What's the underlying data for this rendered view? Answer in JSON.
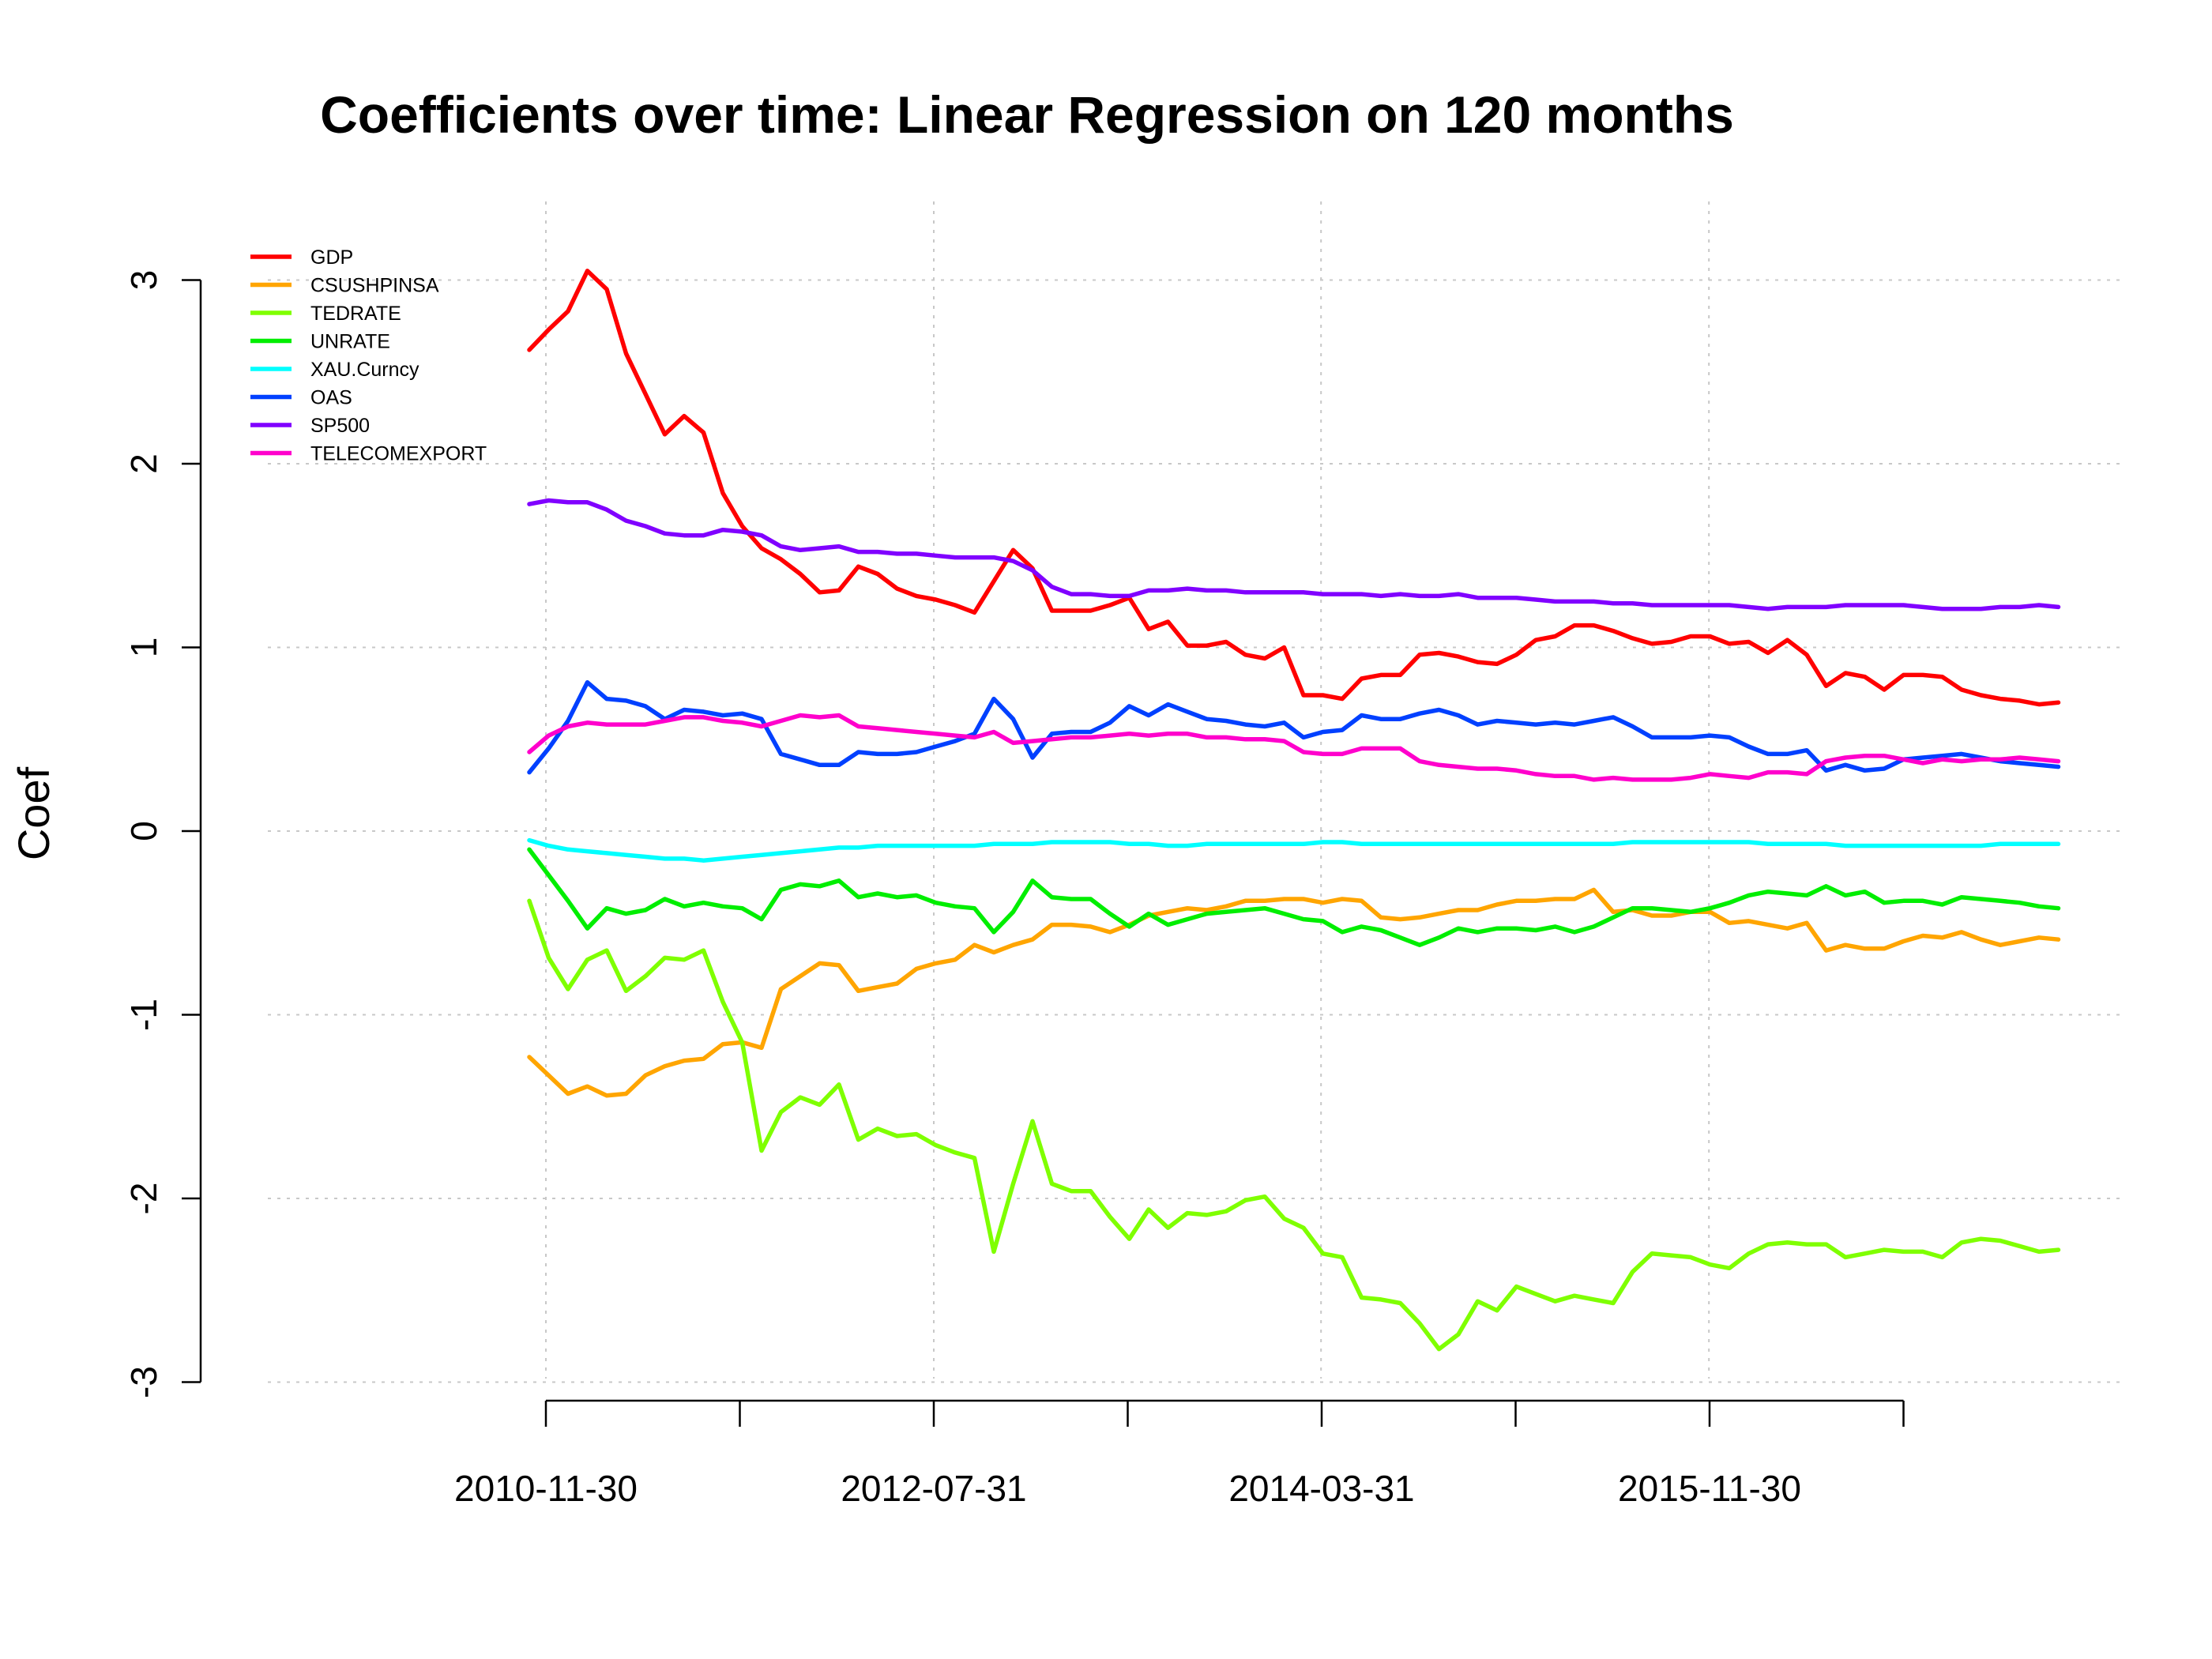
{
  "chart_data": {
    "type": "line",
    "title": "Coefficients over time: Linear Regression on 120 months",
    "xlabel": "",
    "ylabel": "Coef",
    "ylim": [
      -3,
      3
    ],
    "yticks": [
      3,
      2,
      1,
      0,
      -1,
      -2,
      -3
    ],
    "x_start": "2010-07-31",
    "x_step": "1 month",
    "x_range": [
      "2010-07-31",
      "2018-12-31"
    ],
    "x_tick_labels": [
      "2010-11-30",
      "2012-07-31",
      "2014-03-31",
      "2015-11-30"
    ],
    "grid": true,
    "legend_position": "top-left",
    "series": [
      {
        "name": "GDP",
        "color": "#FF0000",
        "values": [
          2.62,
          2.73,
          2.83,
          3.05,
          2.95,
          2.6,
          2.38,
          2.16,
          2.26,
          2.17,
          1.84,
          1.66,
          1.54,
          1.48,
          1.4,
          1.3,
          1.31,
          1.44,
          1.4,
          1.32,
          1.28,
          1.26,
          1.23,
          1.19,
          1.36,
          1.53,
          1.43,
          1.2,
          1.2,
          1.2,
          1.23,
          1.27,
          1.1,
          1.14,
          1.01,
          1.01,
          1.03,
          0.96,
          0.94,
          1.0,
          0.74,
          0.74,
          0.72,
          0.83,
          0.85,
          0.85,
          0.96,
          0.97,
          0.95,
          0.92,
          0.91,
          0.96,
          1.04,
          1.06,
          1.12,
          1.12,
          1.09,
          1.05,
          1.02,
          1.03,
          1.06,
          1.06,
          1.02,
          1.03,
          0.97,
          1.04,
          0.96,
          0.79,
          0.86,
          0.84,
          0.77,
          0.85,
          0.85,
          0.84,
          0.77,
          0.74,
          0.72,
          0.71,
          0.69,
          0.7
        ]
      },
      {
        "name": "CSUSHPINSA",
        "color": "#FFA500",
        "values": [
          -1.23,
          -1.33,
          -1.43,
          -1.39,
          -1.44,
          -1.43,
          -1.33,
          -1.28,
          -1.25,
          -1.24,
          -1.16,
          -1.15,
          -1.18,
          -0.86,
          -0.79,
          -0.72,
          -0.73,
          -0.87,
          -0.85,
          -0.83,
          -0.75,
          -0.72,
          -0.7,
          -0.62,
          -0.66,
          -0.62,
          -0.59,
          -0.51,
          -0.51,
          -0.52,
          -0.55,
          -0.51,
          -0.46,
          -0.44,
          -0.42,
          -0.43,
          -0.41,
          -0.38,
          -0.38,
          -0.37,
          -0.37,
          -0.39,
          -0.37,
          -0.38,
          -0.47,
          -0.48,
          -0.47,
          -0.45,
          -0.43,
          -0.43,
          -0.4,
          -0.38,
          -0.38,
          -0.37,
          -0.37,
          -0.32,
          -0.44,
          -0.43,
          -0.46,
          -0.46,
          -0.44,
          -0.44,
          -0.5,
          -0.49,
          -0.51,
          -0.53,
          -0.5,
          -0.65,
          -0.62,
          -0.64,
          -0.64,
          -0.6,
          -0.57,
          -0.58,
          -0.55,
          -0.59,
          -0.62,
          -0.6,
          -0.58,
          -0.59
        ]
      },
      {
        "name": "TEDRATE",
        "color": "#7FFF00",
        "values": [
          -0.38,
          -0.69,
          -0.86,
          -0.7,
          -0.65,
          -0.87,
          -0.79,
          -0.69,
          -0.7,
          -0.65,
          -0.93,
          -1.15,
          -1.74,
          -1.53,
          -1.45,
          -1.49,
          -1.38,
          -1.68,
          -1.62,
          -1.66,
          -1.65,
          -1.71,
          -1.75,
          -1.78,
          -2.29,
          -1.92,
          -1.58,
          -1.92,
          -1.96,
          -1.96,
          -2.1,
          -2.22,
          -2.06,
          -2.16,
          -2.08,
          -2.09,
          -2.07,
          -2.01,
          -1.99,
          -2.11,
          -2.16,
          -2.3,
          -2.32,
          -2.54,
          -2.55,
          -2.57,
          -2.68,
          -2.82,
          -2.74,
          -2.56,
          -2.61,
          -2.48,
          -2.52,
          -2.56,
          -2.53,
          -2.55,
          -2.57,
          -2.4,
          -2.3,
          -2.31,
          -2.32,
          -2.36,
          -2.38,
          -2.3,
          -2.25,
          -2.24,
          -2.25,
          -2.25,
          -2.32,
          -2.3,
          -2.28,
          -2.29,
          -2.29,
          -2.32,
          -2.24,
          -2.22,
          -2.23,
          -2.26,
          -2.29,
          -2.28
        ]
      },
      {
        "name": "UNRATE",
        "color": "#00EE00",
        "values": [
          -0.1,
          -0.24,
          -0.38,
          -0.53,
          -0.42,
          -0.45,
          -0.43,
          -0.37,
          -0.41,
          -0.39,
          -0.41,
          -0.42,
          -0.48,
          -0.32,
          -0.29,
          -0.3,
          -0.27,
          -0.36,
          -0.34,
          -0.36,
          -0.35,
          -0.39,
          -0.41,
          -0.42,
          -0.55,
          -0.44,
          -0.27,
          -0.36,
          -0.37,
          -0.37,
          -0.45,
          -0.52,
          -0.45,
          -0.51,
          -0.48,
          -0.45,
          -0.44,
          -0.43,
          -0.42,
          -0.45,
          -0.48,
          -0.49,
          -0.55,
          -0.52,
          -0.54,
          -0.58,
          -0.62,
          -0.58,
          -0.53,
          -0.55,
          -0.53,
          -0.53,
          -0.54,
          -0.52,
          -0.55,
          -0.52,
          -0.47,
          -0.42,
          -0.42,
          -0.43,
          -0.44,
          -0.42,
          -0.39,
          -0.35,
          -0.33,
          -0.34,
          -0.35,
          -0.3,
          -0.35,
          -0.33,
          -0.39,
          -0.38,
          -0.38,
          -0.4,
          -0.36,
          -0.37,
          -0.38,
          -0.39,
          -0.41,
          -0.42
        ]
      },
      {
        "name": "XAU.Curncy",
        "color": "#00FFFF",
        "values": [
          -0.05,
          -0.08,
          -0.1,
          -0.11,
          -0.12,
          -0.13,
          -0.14,
          -0.15,
          -0.15,
          -0.16,
          -0.15,
          -0.14,
          -0.13,
          -0.12,
          -0.11,
          -0.1,
          -0.09,
          -0.09,
          -0.08,
          -0.08,
          -0.08,
          -0.08,
          -0.08,
          -0.08,
          -0.07,
          -0.07,
          -0.07,
          -0.06,
          -0.06,
          -0.06,
          -0.06,
          -0.07,
          -0.07,
          -0.08,
          -0.08,
          -0.07,
          -0.07,
          -0.07,
          -0.07,
          -0.07,
          -0.07,
          -0.06,
          -0.06,
          -0.07,
          -0.07,
          -0.07,
          -0.07,
          -0.07,
          -0.07,
          -0.07,
          -0.07,
          -0.07,
          -0.07,
          -0.07,
          -0.07,
          -0.07,
          -0.07,
          -0.06,
          -0.06,
          -0.06,
          -0.06,
          -0.06,
          -0.06,
          -0.06,
          -0.07,
          -0.07,
          -0.07,
          -0.07,
          -0.08,
          -0.08,
          -0.08,
          -0.08,
          -0.08,
          -0.08,
          -0.08,
          -0.08,
          -0.07,
          -0.07,
          -0.07,
          -0.07
        ]
      },
      {
        "name": "OAS",
        "color": "#0040FF",
        "values": [
          0.32,
          0.45,
          0.6,
          0.81,
          0.72,
          0.71,
          0.68,
          0.61,
          0.66,
          0.65,
          0.63,
          0.64,
          0.61,
          0.42,
          0.39,
          0.36,
          0.36,
          0.43,
          0.42,
          0.42,
          0.43,
          0.46,
          0.49,
          0.53,
          0.72,
          0.61,
          0.4,
          0.53,
          0.54,
          0.54,
          0.59,
          0.68,
          0.63,
          0.69,
          0.65,
          0.61,
          0.6,
          0.58,
          0.57,
          0.59,
          0.51,
          0.54,
          0.55,
          0.63,
          0.61,
          0.61,
          0.64,
          0.66,
          0.63,
          0.58,
          0.6,
          0.59,
          0.58,
          0.59,
          0.58,
          0.6,
          0.62,
          0.57,
          0.51,
          0.51,
          0.51,
          0.52,
          0.51,
          0.46,
          0.42,
          0.42,
          0.44,
          0.33,
          0.36,
          0.33,
          0.34,
          0.39,
          0.4,
          0.41,
          0.42,
          0.4,
          0.38,
          0.37,
          0.36,
          0.35
        ]
      },
      {
        "name": "SP500",
        "color": "#8000FF",
        "values": [
          1.78,
          1.8,
          1.79,
          1.79,
          1.75,
          1.69,
          1.66,
          1.62,
          1.61,
          1.61,
          1.64,
          1.63,
          1.61,
          1.55,
          1.53,
          1.54,
          1.55,
          1.52,
          1.52,
          1.51,
          1.51,
          1.5,
          1.49,
          1.49,
          1.49,
          1.47,
          1.42,
          1.33,
          1.29,
          1.29,
          1.28,
          1.28,
          1.31,
          1.31,
          1.32,
          1.31,
          1.31,
          1.3,
          1.3,
          1.3,
          1.3,
          1.29,
          1.29,
          1.29,
          1.28,
          1.29,
          1.28,
          1.28,
          1.29,
          1.27,
          1.27,
          1.27,
          1.26,
          1.25,
          1.25,
          1.25,
          1.24,
          1.24,
          1.23,
          1.23,
          1.23,
          1.23,
          1.23,
          1.22,
          1.21,
          1.22,
          1.22,
          1.22,
          1.23,
          1.23,
          1.23,
          1.23,
          1.22,
          1.21,
          1.21,
          1.21,
          1.22,
          1.22,
          1.23,
          1.22
        ]
      },
      {
        "name": "TELECOMEXPORT",
        "color": "#FF00CC",
        "values": [
          0.43,
          0.52,
          0.57,
          0.59,
          0.58,
          0.58,
          0.58,
          0.6,
          0.62,
          0.62,
          0.6,
          0.59,
          0.57,
          0.6,
          0.63,
          0.62,
          0.63,
          0.57,
          0.56,
          0.55,
          0.54,
          0.53,
          0.52,
          0.51,
          0.54,
          0.48,
          0.49,
          0.5,
          0.51,
          0.51,
          0.52,
          0.53,
          0.52,
          0.53,
          0.53,
          0.51,
          0.51,
          0.5,
          0.5,
          0.49,
          0.43,
          0.42,
          0.42,
          0.45,
          0.45,
          0.45,
          0.38,
          0.36,
          0.35,
          0.34,
          0.34,
          0.33,
          0.31,
          0.3,
          0.3,
          0.28,
          0.29,
          0.28,
          0.28,
          0.28,
          0.29,
          0.31,
          0.3,
          0.29,
          0.32,
          0.32,
          0.31,
          0.38,
          0.4,
          0.41,
          0.41,
          0.39,
          0.37,
          0.39,
          0.38,
          0.39,
          0.39,
          0.4,
          0.39,
          0.38
        ]
      }
    ]
  }
}
